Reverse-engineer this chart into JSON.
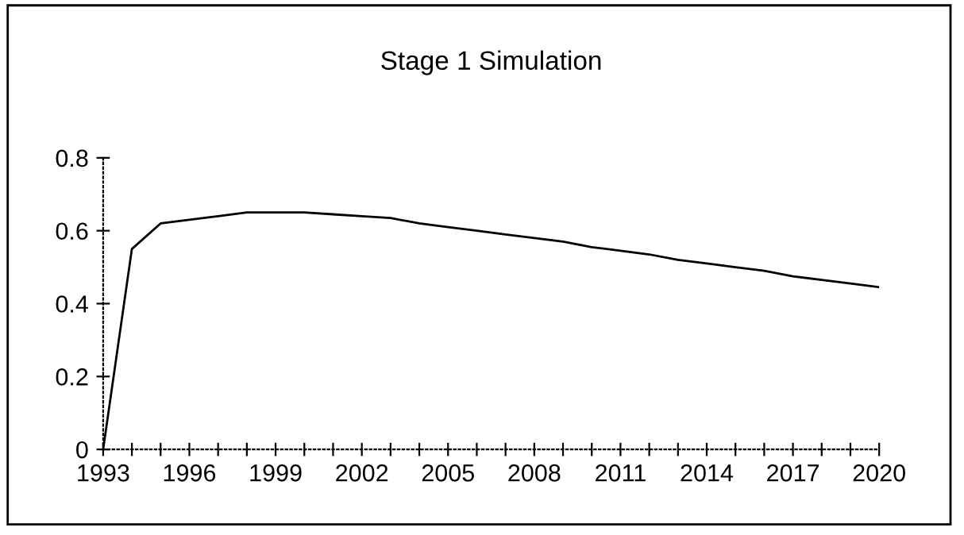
{
  "chart_data": {
    "type": "line",
    "title": "Stage 1 Simulation",
    "x": [
      1993,
      1994,
      1995,
      1996,
      1997,
      1998,
      1999,
      2000,
      2001,
      2002,
      2003,
      2004,
      2005,
      2006,
      2007,
      2008,
      2009,
      2010,
      2011,
      2012,
      2013,
      2014,
      2015,
      2016,
      2017,
      2018,
      2019,
      2020
    ],
    "series": [
      {
        "color": "#000000",
        "values": [
          0,
          0.55,
          0.62,
          0.63,
          0.64,
          0.65,
          0.65,
          0.65,
          0.645,
          0.64,
          0.635,
          0.62,
          0.61,
          0.6,
          0.59,
          0.58,
          0.57,
          0.555,
          0.545,
          0.535,
          0.52,
          0.51,
          0.5,
          0.49,
          0.475,
          0.465,
          0.455,
          0.445
        ]
      }
    ],
    "xlim": [
      1993,
      2020
    ],
    "xticks": [
      1993,
      {
        "value": 1994,
        "label": null
      },
      {
        "value": 1995,
        "label": null
      },
      1996,
      {
        "value": 1997,
        "label": null
      },
      {
        "value": 1998,
        "label": null
      },
      1999,
      {
        "value": 2000,
        "label": null
      },
      {
        "value": 2001,
        "label": null
      },
      2002,
      {
        "value": 2003,
        "label": null
      },
      {
        "value": 2004,
        "label": null
      },
      2005,
      {
        "value": 2006,
        "label": null
      },
      {
        "value": 2007,
        "label": null
      },
      2008,
      {
        "value": 2009,
        "label": null
      },
      {
        "value": 2010,
        "label": null
      },
      2011,
      {
        "value": 2012,
        "label": null
      },
      {
        "value": 2013,
        "label": null
      },
      2014,
      {
        "value": 2015,
        "label": null
      },
      {
        "value": 2016,
        "label": null
      },
      2017,
      {
        "value": 2018,
        "label": null
      },
      {
        "value": 2019,
        "label": null
      },
      2020
    ],
    "ylim": [
      0,
      0.8
    ],
    "yticks": [
      0,
      0.2,
      0.4,
      0.6,
      0.8
    ],
    "grid": false,
    "legend": false,
    "marker": "none",
    "line_style": "solid"
  }
}
